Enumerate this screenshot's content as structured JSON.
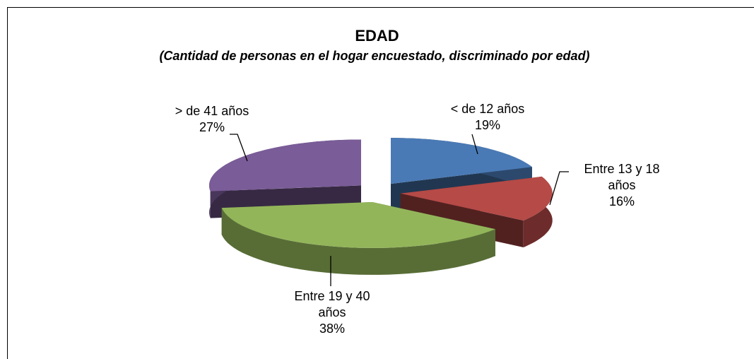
{
  "chart_data": {
    "type": "pie",
    "title": "EDAD",
    "subtitle": "(Cantidad de personas en el hogar encuestado, discriminado  por edad)",
    "categories": [
      "< de 12 años",
      "Entre 13 y 18 años",
      "Entre 19  y 40 años",
      "> de 41 años"
    ],
    "values": [
      19,
      16,
      38,
      27
    ],
    "value_labels": [
      "19%",
      "16%",
      "38%",
      "27%"
    ],
    "colors": [
      "#4a7ab5",
      "#b54a47",
      "#93b55a",
      "#7a5c98"
    ]
  }
}
